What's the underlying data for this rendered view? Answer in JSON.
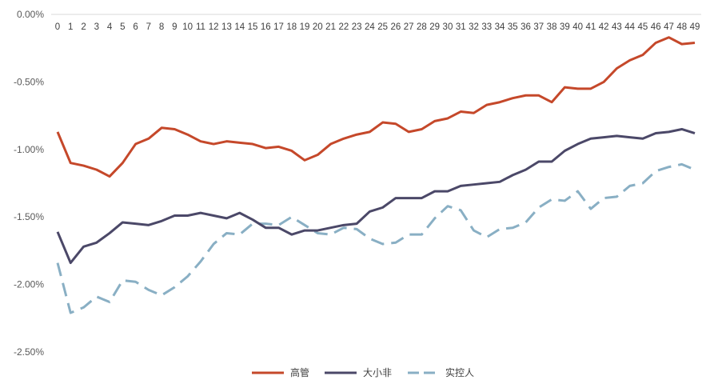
{
  "chart_data": {
    "type": "line",
    "title": "",
    "xlabel": "",
    "ylabel": "",
    "x": [
      0,
      1,
      2,
      3,
      4,
      5,
      6,
      7,
      8,
      9,
      10,
      11,
      12,
      13,
      14,
      15,
      16,
      17,
      18,
      19,
      20,
      21,
      22,
      23,
      24,
      25,
      26,
      27,
      28,
      29,
      30,
      31,
      32,
      33,
      34,
      35,
      36,
      37,
      38,
      39,
      40,
      41,
      42,
      43,
      44,
      45,
      46,
      47,
      48,
      49
    ],
    "ylim": [
      -0.025,
      0.0
    ],
    "yticks": [
      0.0,
      -0.005,
      -0.01,
      -0.015,
      -0.02,
      -0.025
    ],
    "ytick_labels": [
      "0.00%",
      "-0.50%",
      "-1.00%",
      "-1.50%",
      "-2.00%",
      "-2.50%"
    ],
    "x_axis_position": "top",
    "grid": false,
    "legend_position": "bottom",
    "series": [
      {
        "name": "高管",
        "color": "#C5482A",
        "style": "solid",
        "values": [
          -0.87,
          -1.1,
          -1.12,
          -1.15,
          -1.2,
          -1.1,
          -0.96,
          -0.92,
          -0.84,
          -0.85,
          -0.89,
          -0.94,
          -0.96,
          -0.94,
          -0.95,
          -0.96,
          -0.99,
          -0.98,
          -1.01,
          -1.08,
          -1.04,
          -0.96,
          -0.92,
          -0.89,
          -0.87,
          -0.8,
          -0.81,
          -0.87,
          -0.85,
          -0.79,
          -0.77,
          -0.72,
          -0.73,
          -0.67,
          -0.65,
          -0.62,
          -0.6,
          -0.6,
          -0.65,
          -0.54,
          -0.55,
          -0.55,
          -0.5,
          -0.4,
          -0.34,
          -0.3,
          -0.21,
          -0.17,
          -0.22,
          -0.21
        ]
      },
      {
        "name": "大小非",
        "color": "#4B4868",
        "style": "solid",
        "values": [
          -1.61,
          -1.84,
          -1.72,
          -1.69,
          -1.62,
          -1.54,
          -1.55,
          -1.56,
          -1.53,
          -1.49,
          -1.49,
          -1.47,
          -1.49,
          -1.51,
          -1.47,
          -1.52,
          -1.58,
          -1.58,
          -1.63,
          -1.6,
          -1.6,
          -1.58,
          -1.56,
          -1.55,
          -1.46,
          -1.43,
          -1.36,
          -1.36,
          -1.36,
          -1.31,
          -1.31,
          -1.27,
          -1.26,
          -1.25,
          -1.24,
          -1.19,
          -1.15,
          -1.09,
          -1.09,
          -1.01,
          -0.96,
          -0.92,
          -0.91,
          -0.9,
          -0.91,
          -0.92,
          -0.88,
          -0.87,
          -0.85,
          -0.88
        ]
      },
      {
        "name": "实控人",
        "color": "#89AFC4",
        "style": "dashed",
        "values": [
          -1.84,
          -2.21,
          -2.17,
          -2.09,
          -2.13,
          -1.97,
          -1.98,
          -2.04,
          -2.08,
          -2.02,
          -1.94,
          -1.83,
          -1.7,
          -1.62,
          -1.63,
          -1.55,
          -1.55,
          -1.56,
          -1.5,
          -1.56,
          -1.62,
          -1.63,
          -1.58,
          -1.59,
          -1.66,
          -1.7,
          -1.69,
          -1.63,
          -1.63,
          -1.51,
          -1.42,
          -1.45,
          -1.6,
          -1.65,
          -1.59,
          -1.58,
          -1.54,
          -1.43,
          -1.37,
          -1.38,
          -1.31,
          -1.44,
          -1.36,
          -1.35,
          -1.27,
          -1.25,
          -1.16,
          -1.13,
          -1.11,
          -1.15
        ]
      }
    ]
  }
}
